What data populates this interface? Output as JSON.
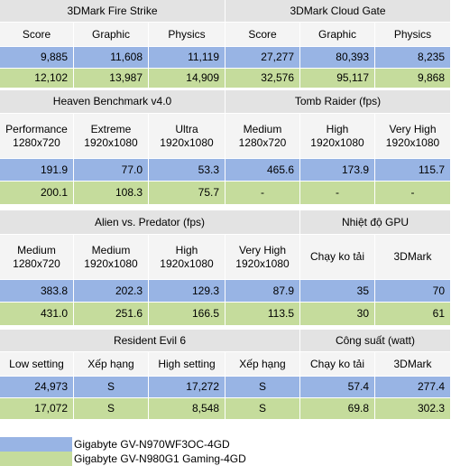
{
  "colors": {
    "header": "#e3e3e3",
    "subheader": "#f4f4f4",
    "series1": "#98b4e4",
    "series2": "#c5dc9c"
  },
  "legend": [
    {
      "label": "Gigabyte GV-N970WF3OC-4GD",
      "color": "#98b4e4"
    },
    {
      "label": "Gigabyte GV-N980G1 Gaming-4GD",
      "color": "#c5dc9c"
    }
  ],
  "chart_data": {
    "type": "table",
    "sections": [
      {
        "groups": [
          {
            "title": "3DMark Fire Strike",
            "columns": [
              "Score",
              "Graphic",
              "Physics"
            ]
          },
          {
            "title": "3DMark Cloud Gate",
            "columns": [
              "Score",
              "Graphic",
              "Physics"
            ]
          }
        ],
        "rows": [
          [
            "9,885",
            "11,608",
            "11,119",
            "27,277",
            "80,393",
            "8,235"
          ],
          [
            "12,102",
            "13,987",
            "14,909",
            "32,576",
            "95,117",
            "9,868"
          ]
        ]
      },
      {
        "groups": [
          {
            "title": "Heaven Benchmark v4.0",
            "columns": [
              "Performance\n1280x720",
              "Extreme\n1920x1080",
              "Ultra\n1920x1080"
            ]
          },
          {
            "title": "Tomb Raider (fps)",
            "columns": [
              "Medium\n1280x720",
              "High\n1920x1080",
              "Very High\n1920x1080"
            ]
          }
        ],
        "rows": [
          [
            "191.9",
            "77.0",
            "53.3",
            "465.6",
            "173.9",
            "115.7"
          ],
          [
            "200.1",
            "108.3",
            "75.7",
            "-",
            "-",
            "-"
          ]
        ]
      },
      {
        "groups": [
          {
            "title": "Alien vs. Predator (fps)",
            "columns": [
              "Medium\n1280x720",
              "Medium\n1920x1080",
              "High\n1920x1080",
              "Very High\n1920x1080"
            ]
          },
          {
            "title": "Nhiệt độ GPU",
            "columns": [
              "Chạy ko tải",
              "3DMark"
            ]
          }
        ],
        "rows": [
          [
            "383.8",
            "202.3",
            "129.3",
            "87.9",
            "35",
            "70"
          ],
          [
            "431.0",
            "251.6",
            "166.5",
            "113.5",
            "30",
            "61"
          ]
        ]
      },
      {
        "groups": [
          {
            "title": "Resident Evil 6",
            "columns": [
              "Low setting",
              "Xếp hạng",
              "High setting",
              "Xếp hạng"
            ]
          },
          {
            "title": "Công suất (watt)",
            "columns": [
              "Chạy ko tải",
              "3DMark"
            ]
          }
        ],
        "rows": [
          [
            "24,973",
            "S",
            "17,272",
            "S",
            "57.4",
            "277.4"
          ],
          [
            "17,072",
            "S",
            "8,548",
            "S",
            "69.8",
            "302.3"
          ]
        ]
      }
    ]
  }
}
